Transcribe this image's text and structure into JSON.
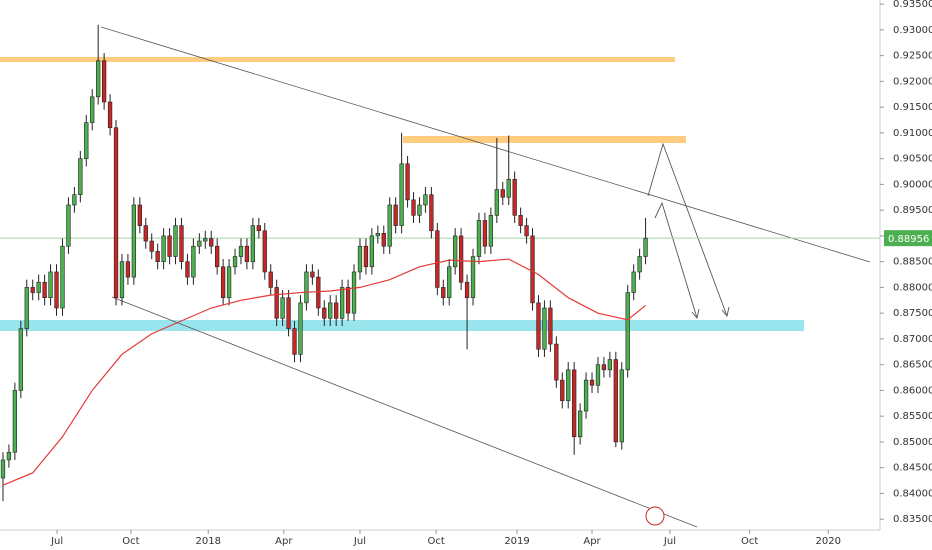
{
  "chart_data": {
    "type": "candlestick",
    "ohlc": [
      [
        0.843,
        0.848,
        0.8385,
        0.8465
      ],
      [
        0.8465,
        0.8495,
        0.845,
        0.848
      ],
      [
        0.848,
        0.8615,
        0.8465,
        0.86
      ],
      [
        0.86,
        0.8735,
        0.8585,
        0.872
      ],
      [
        0.872,
        0.8815,
        0.8705,
        0.88
      ],
      [
        0.88,
        0.8815,
        0.8775,
        0.879
      ],
      [
        0.879,
        0.8825,
        0.8775,
        0.881
      ],
      [
        0.881,
        0.8825,
        0.8765,
        0.878
      ],
      [
        0.878,
        0.8845,
        0.8765,
        0.883
      ],
      [
        0.883,
        0.8845,
        0.8745,
        0.876
      ],
      [
        0.876,
        0.8895,
        0.8745,
        0.888
      ],
      [
        0.888,
        0.8975,
        0.8865,
        0.896
      ],
      [
        0.896,
        0.8995,
        0.8945,
        0.898
      ],
      [
        0.898,
        0.9065,
        0.8965,
        0.905
      ],
      [
        0.905,
        0.9135,
        0.9035,
        0.912
      ],
      [
        0.912,
        0.9185,
        0.9105,
        0.917
      ],
      [
        0.917,
        0.931,
        0.9155,
        0.924
      ],
      [
        0.924,
        0.9255,
        0.9145,
        0.916
      ],
      [
        0.916,
        0.9175,
        0.9095,
        0.911
      ],
      [
        0.911,
        0.9125,
        0.8765,
        0.878
      ],
      [
        0.878,
        0.8865,
        0.8765,
        0.885
      ],
      [
        0.885,
        0.8865,
        0.8805,
        0.882
      ],
      [
        0.882,
        0.8975,
        0.8805,
        0.896
      ],
      [
        0.896,
        0.8975,
        0.8905,
        0.892
      ],
      [
        0.892,
        0.8935,
        0.8875,
        0.889
      ],
      [
        0.889,
        0.8905,
        0.8855,
        0.887
      ],
      [
        0.887,
        0.8885,
        0.8835,
        0.885
      ],
      [
        0.885,
        0.8915,
        0.8835,
        0.89
      ],
      [
        0.89,
        0.8915,
        0.8845,
        0.886
      ],
      [
        0.886,
        0.8935,
        0.8845,
        0.892
      ],
      [
        0.892,
        0.8935,
        0.8835,
        0.885
      ],
      [
        0.885,
        0.8865,
        0.8805,
        0.882
      ],
      [
        0.882,
        0.8895,
        0.8805,
        0.888
      ],
      [
        0.888,
        0.8905,
        0.8865,
        0.889
      ],
      [
        0.889,
        0.891,
        0.8875,
        0.8895
      ],
      [
        0.8895,
        0.891,
        0.8865,
        0.888
      ],
      [
        0.888,
        0.8895,
        0.8825,
        0.884
      ],
      [
        0.884,
        0.8855,
        0.8765,
        0.878
      ],
      [
        0.878,
        0.8855,
        0.8765,
        0.884
      ],
      [
        0.884,
        0.8875,
        0.8825,
        0.886
      ],
      [
        0.886,
        0.8895,
        0.8845,
        0.888
      ],
      [
        0.888,
        0.8895,
        0.8835,
        0.885
      ],
      [
        0.885,
        0.8935,
        0.8835,
        0.892
      ],
      [
        0.892,
        0.8935,
        0.8895,
        0.891
      ],
      [
        0.891,
        0.8925,
        0.8815,
        0.883
      ],
      [
        0.883,
        0.8845,
        0.8785,
        0.88
      ],
      [
        0.88,
        0.8815,
        0.8725,
        0.874
      ],
      [
        0.874,
        0.8795,
        0.8725,
        0.878
      ],
      [
        0.878,
        0.8795,
        0.8705,
        0.872
      ],
      [
        0.872,
        0.8735,
        0.8655,
        0.867
      ],
      [
        0.867,
        0.8785,
        0.8655,
        0.877
      ],
      [
        0.877,
        0.8845,
        0.8755,
        0.883
      ],
      [
        0.883,
        0.8845,
        0.8805,
        0.882
      ],
      [
        0.882,
        0.8835,
        0.8745,
        0.876
      ],
      [
        0.876,
        0.8775,
        0.8725,
        0.874
      ],
      [
        0.874,
        0.8785,
        0.8725,
        0.877
      ],
      [
        0.877,
        0.8785,
        0.8725,
        0.874
      ],
      [
        0.874,
        0.8815,
        0.8725,
        0.88
      ],
      [
        0.88,
        0.8815,
        0.8735,
        0.875
      ],
      [
        0.875,
        0.8845,
        0.8735,
        0.883
      ],
      [
        0.883,
        0.8895,
        0.8815,
        0.888
      ],
      [
        0.888,
        0.8895,
        0.8825,
        0.884
      ],
      [
        0.884,
        0.8915,
        0.8825,
        0.89
      ],
      [
        0.89,
        0.892,
        0.8885,
        0.8905
      ],
      [
        0.8905,
        0.892,
        0.8865,
        0.888
      ],
      [
        0.888,
        0.8975,
        0.8865,
        0.896
      ],
      [
        0.896,
        0.8975,
        0.8905,
        0.892
      ],
      [
        0.892,
        0.91,
        0.8905,
        0.904
      ],
      [
        0.904,
        0.9055,
        0.8955,
        0.897
      ],
      [
        0.897,
        0.8985,
        0.8925,
        0.894
      ],
      [
        0.894,
        0.8975,
        0.8925,
        0.896
      ],
      [
        0.896,
        0.8995,
        0.8945,
        0.898
      ],
      [
        0.898,
        0.8995,
        0.8895,
        0.891
      ],
      [
        0.891,
        0.8925,
        0.8785,
        0.88
      ],
      [
        0.88,
        0.8815,
        0.8765,
        0.878
      ],
      [
        0.878,
        0.8855,
        0.8765,
        0.884
      ],
      [
        0.884,
        0.8915,
        0.8825,
        0.89
      ],
      [
        0.89,
        0.8915,
        0.8795,
        0.881
      ],
      [
        0.881,
        0.8825,
        0.868,
        0.878
      ],
      [
        0.878,
        0.8875,
        0.8765,
        0.886
      ],
      [
        0.886,
        0.8945,
        0.8845,
        0.893
      ],
      [
        0.893,
        0.8945,
        0.8865,
        0.888
      ],
      [
        0.888,
        0.8955,
        0.8865,
        0.894
      ],
      [
        0.894,
        0.909,
        0.8925,
        0.899
      ],
      [
        0.899,
        0.9005,
        0.896,
        0.8975
      ],
      [
        0.8975,
        0.9095,
        0.896,
        0.901
      ],
      [
        0.901,
        0.9025,
        0.8925,
        0.894
      ],
      [
        0.894,
        0.8955,
        0.8905,
        0.892
      ],
      [
        0.892,
        0.8935,
        0.8885,
        0.89
      ],
      [
        0.89,
        0.8915,
        0.8755,
        0.877
      ],
      [
        0.877,
        0.8785,
        0.8665,
        0.868
      ],
      [
        0.868,
        0.8775,
        0.8665,
        0.876
      ],
      [
        0.876,
        0.8775,
        0.8675,
        0.869
      ],
      [
        0.869,
        0.8705,
        0.8605,
        0.862
      ],
      [
        0.862,
        0.8635,
        0.8565,
        0.858
      ],
      [
        0.858,
        0.8655,
        0.8565,
        0.864
      ],
      [
        0.864,
        0.8655,
        0.8475,
        0.851
      ],
      [
        0.851,
        0.8575,
        0.8495,
        0.856
      ],
      [
        0.856,
        0.8635,
        0.8545,
        0.862
      ],
      [
        0.862,
        0.8635,
        0.8595,
        0.861
      ],
      [
        0.861,
        0.8665,
        0.8595,
        0.865
      ],
      [
        0.865,
        0.8665,
        0.8625,
        0.864
      ],
      [
        0.864,
        0.8675,
        0.8625,
        0.866
      ],
      [
        0.866,
        0.8675,
        0.849,
        0.85
      ],
      [
        0.85,
        0.8655,
        0.8485,
        0.864
      ],
      [
        0.864,
        0.8805,
        0.8625,
        0.879
      ],
      [
        0.879,
        0.8845,
        0.8775,
        0.883
      ],
      [
        0.883,
        0.8875,
        0.8815,
        0.886
      ],
      [
        0.886,
        0.8935,
        0.8845,
        0.88956
      ]
    ],
    "up_color": "#4caf50",
    "down_color": "#c62828",
    "wick_color": "#222222",
    "ma": {
      "color": "#e53935",
      "x": [
        0,
        5,
        10,
        15,
        20,
        25,
        30,
        35,
        40,
        45,
        50,
        55,
        60,
        65,
        70,
        75,
        80,
        85,
        90,
        95,
        100,
        105,
        108
      ],
      "values": [
        0.8416,
        0.844,
        0.851,
        0.86,
        0.867,
        0.871,
        0.8735,
        0.876,
        0.8775,
        0.8785,
        0.879,
        0.8793,
        0.88,
        0.8815,
        0.884,
        0.8853,
        0.885,
        0.8855,
        0.8825,
        0.878,
        0.875,
        0.8737,
        0.8765
      ]
    },
    "price_line_color": "#a5d6a7",
    "xlim": [
      -0.5,
      147.4
    ],
    "xticks": [
      {
        "value": 9.1,
        "label": "Jul"
      },
      {
        "value": 21.5,
        "label": "Oct"
      },
      {
        "value": 34.5,
        "label": "2018"
      },
      {
        "value": 47.2,
        "label": "Apr"
      },
      {
        "value": 60,
        "label": "Jul"
      },
      {
        "value": 72.8,
        "label": "Oct"
      },
      {
        "value": 86.4,
        "label": "2019"
      },
      {
        "value": 99,
        "label": "Apr"
      },
      {
        "value": 112.1,
        "label": "Jul"
      },
      {
        "value": 125.5,
        "label": "Oct"
      },
      {
        "value": 138.7,
        "label": "2020"
      }
    ],
    "ylim": [
      0.8329,
      0.9358
    ],
    "yticks": [
      {
        "value": 0.935,
        "label": "0.93500"
      },
      {
        "value": 0.93,
        "label": "0.93000"
      },
      {
        "value": 0.925,
        "label": "0.92500"
      },
      {
        "value": 0.92,
        "label": "0.92000"
      },
      {
        "value": 0.915,
        "label": "0.91500"
      },
      {
        "value": 0.91,
        "label": "0.91000"
      },
      {
        "value": 0.905,
        "label": "0.90500"
      },
      {
        "value": 0.9,
        "label": "0.90000"
      },
      {
        "value": 0.895,
        "label": "0.89500"
      },
      {
        "value": 0.89,
        "label": "0.89000"
      },
      {
        "value": 0.885,
        "label": "0.88500"
      },
      {
        "value": 0.88,
        "label": "0.88000"
      },
      {
        "value": 0.875,
        "label": "0.87500"
      },
      {
        "value": 0.87,
        "label": "0.87000"
      },
      {
        "value": 0.865,
        "label": "0.86500"
      },
      {
        "value": 0.86,
        "label": "0.86000"
      },
      {
        "value": 0.855,
        "label": "0.85500"
      },
      {
        "value": 0.85,
        "label": "0.85000"
      },
      {
        "value": 0.845,
        "label": "0.84500"
      },
      {
        "value": 0.84,
        "label": "0.84000"
      },
      {
        "value": 0.835,
        "label": "0.83500"
      }
    ]
  }
}
